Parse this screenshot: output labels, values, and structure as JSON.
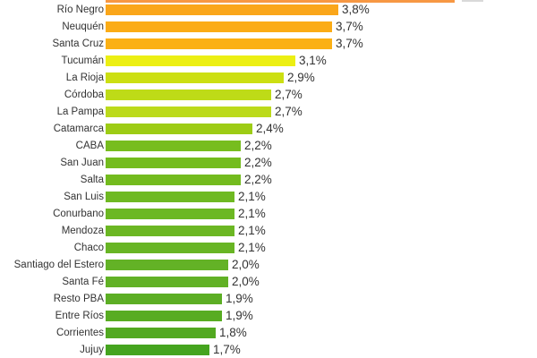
{
  "chart_data": {
    "type": "bar",
    "orientation": "horizontal",
    "title": "",
    "xlabel": "",
    "ylabel": "",
    "xlim": [
      0,
      6.2
    ],
    "grid": false,
    "legend": false,
    "axes_visible": false,
    "value_suffix": "%",
    "decimal_separator": ",",
    "categories": [
      "Río Negro",
      "Neuquén",
      "Santa Cruz",
      "Tucumán",
      "La Rioja",
      "Córdoba",
      "La Pampa",
      "Catamarca",
      "CABA",
      "San Juan",
      "Salta",
      "San Luis",
      "Conurbano",
      "Mendoza",
      "Chaco",
      "Santiago del Estero",
      "Santa Fé",
      "Resto PBA",
      "Entre Ríos",
      "Corrientes",
      "Jujuy"
    ],
    "values": [
      3.8,
      3.7,
      3.7,
      3.1,
      2.9,
      2.7,
      2.7,
      2.4,
      2.2,
      2.2,
      2.2,
      2.1,
      2.1,
      2.1,
      2.1,
      2.0,
      2.0,
      1.9,
      1.9,
      1.8,
      1.7
    ],
    "value_labels": [
      "3,8%",
      "3,7%",
      "3,7%",
      "3,1%",
      "2,9%",
      "2,7%",
      "2,7%",
      "2,4%",
      "2,2%",
      "2,2%",
      "2,2%",
      "2,1%",
      "2,1%",
      "2,1%",
      "2,1%",
      "2,0%",
      "2,0%",
      "1,9%",
      "1,9%",
      "1,8%",
      "1,7%"
    ],
    "bar_colors": [
      "#FAA61A",
      "#FBAC16",
      "#FBB014",
      "#ECEF13",
      "#CCDF12",
      "#BEDB17",
      "#BCDA1B",
      "#9DCC15",
      "#77BD1E",
      "#74BC1E",
      "#73BB1E",
      "#6FB922",
      "#6CB822",
      "#6BB723",
      "#68B524",
      "#63B226",
      "#61B125",
      "#5CAE24",
      "#58AC22",
      "#52A921",
      "#45A41F"
    ],
    "clipped_top_bar": {
      "approx_value": 5.7,
      "color": "#F79843",
      "label_visible": false
    },
    "label_color": "#333333",
    "value_color": "#333333",
    "background": "#FFFFFF"
  }
}
